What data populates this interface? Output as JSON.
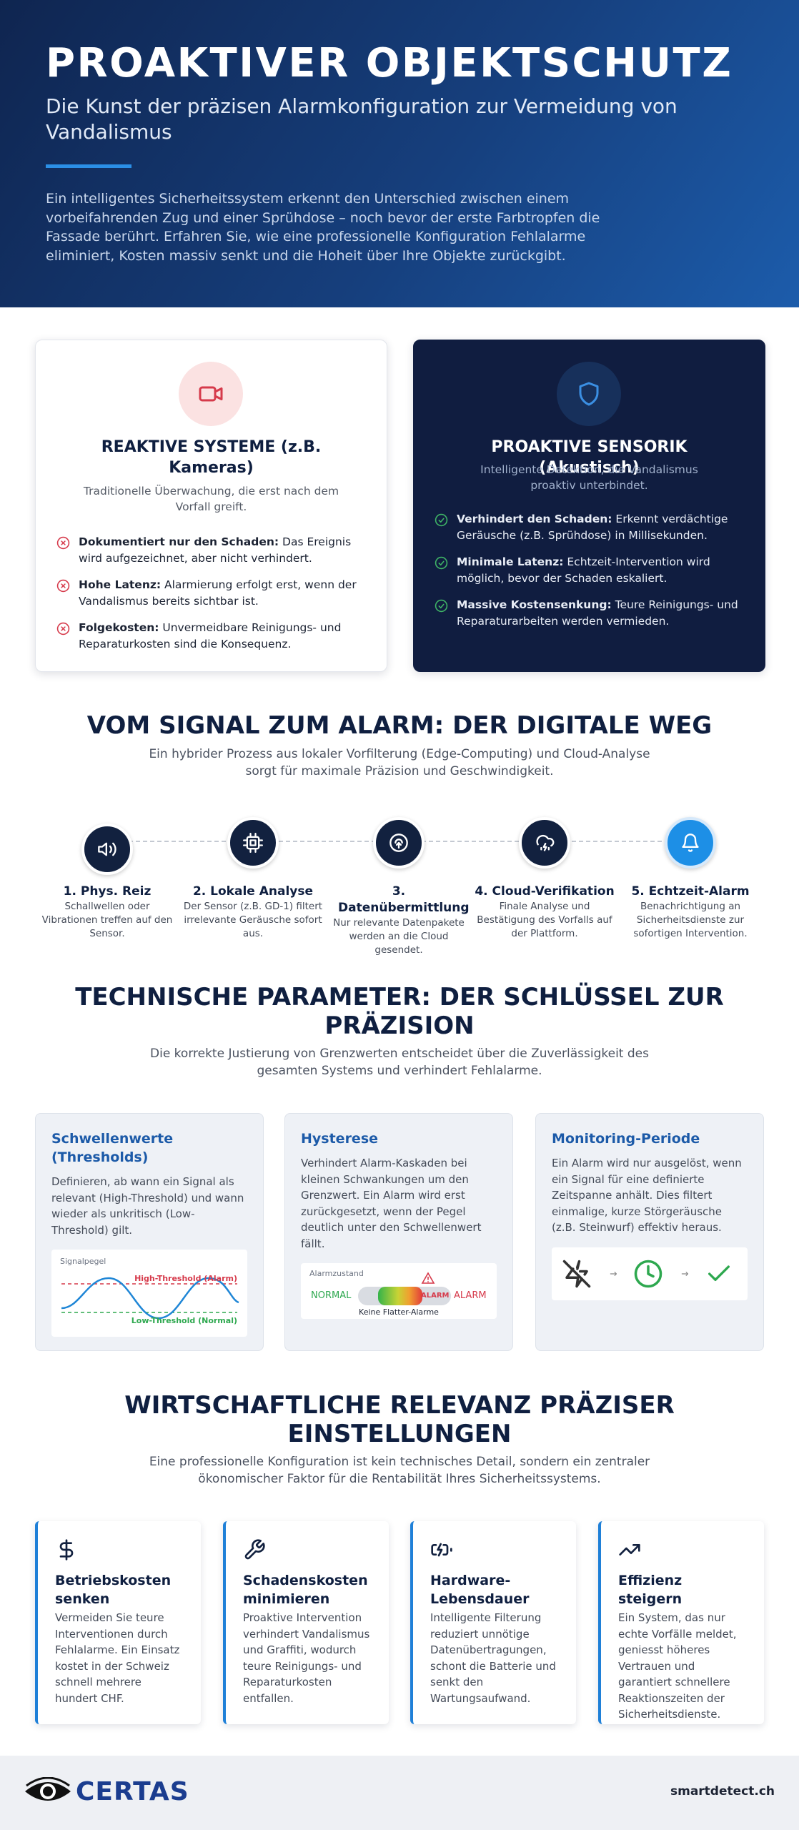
{
  "header": {
    "title": "PROAKTIVER OBJEKTSCHUTZ",
    "subtitle": "Die Kunst der präzisen Alarmkonfiguration zur Vermeidung von Vandalismus",
    "intro": "Ein intelligentes Sicherheitssystem erkennt den Unterschied zwischen einem vorbeifahrenden Zug und einer Sprühdose – noch bevor der erste Farbtropfen die Fassade berührt. Erfahren Sie, wie eine professionelle Konfiguration Fehlalarme eliminiert, Kosten massiv senkt und die Hoheit über Ihre Objekte zurückgibt."
  },
  "comparison": [
    {
      "title": "REAKTIVE SYSTEME (z.B. Kameras)",
      "subtitle": "Traditionelle Überwachung, die erst nach dem Vorfall greift.",
      "items": [
        {
          "bold": "Dokumentiert nur den Schaden:",
          "text": "Das Ereignis wird aufgezeichnet, aber nicht verhindert."
        },
        {
          "bold": "Hohe Latenz:",
          "text": "Alarmierung erfolgt erst, wenn der Vandalismus bereits sichtbar ist."
        },
        {
          "bold": "Folgekosten:",
          "text": "Unvermeidbare Reinigungs- und Reparaturkosten sind die Konsequenz."
        }
      ]
    },
    {
      "title": "PROAKTIVE SENSORIK (Akustisch)",
      "subtitle": "Intelligente Detektion, die Vandalismus proaktiv unterbindet.",
      "items": [
        {
          "bold": "Verhindert den Schaden:",
          "text": "Erkennt verdächtige Geräusche (z.B. Sprühdose) in Millisekunden."
        },
        {
          "bold": "Minimale Latenz:",
          "text": "Echtzeit-Intervention wird möglich, bevor der Schaden eskaliert."
        },
        {
          "bold": "Massive Kostensenkung:",
          "text": "Teure Reinigungs- und Reparaturarbeiten werden vermieden."
        }
      ]
    }
  ],
  "process": {
    "title": "VOM SIGNAL ZUM ALARM: DER DIGITALE WEG",
    "subtitle": "Ein hybrider Prozess aus lokaler Vorfilterung (Edge-Computing) und Cloud-Analyse sorgt für maximale Präzision und Geschwindigkeit.",
    "steps": [
      {
        "title": "1. Phys. Reiz",
        "text": "Schallwellen oder Vibrationen treffen auf den Sensor."
      },
      {
        "title": "2. Lokale Analyse",
        "text": "Der Sensor (z.B. GD-1) filtert irrelevante Geräusche sofort aus."
      },
      {
        "title": "3. Datenübermittlung",
        "text": "Nur relevante Datenpakete werden an die Cloud gesendet."
      },
      {
        "title": "4. Cloud-Verifikation",
        "text": "Finale Analyse und Bestätigung des Vorfalls auf der Plattform."
      },
      {
        "title": "5. Echtzeit-Alarm",
        "text": "Benachrichtigung an Sicherheitsdienste zur sofortigen Intervention."
      }
    ]
  },
  "parameters": {
    "title": "TECHNISCHE PARAMETER: DER SCHLÜSSEL ZUR PRÄZISION",
    "subtitle": "Die korrekte Justierung von Grenzwerten entscheidet über die Zuverlässigkeit des gesamten Systems und verhindert Fehlalarme.",
    "cards": [
      {
        "title": "Schwellenwerte (Thresholds)",
        "text": "Definieren, ab wann ein Signal als relevant (High-Threshold) und wann wieder als unkritisch (Low-Threshold) gilt."
      },
      {
        "title": "Hysterese",
        "text": "Verhindert Alarm-Kaskaden bei kleinen Schwankungen um den Grenzwert. Ein Alarm wird erst zurückgesetzt, wenn der Pegel deutlich unter den Schwellenwert fällt."
      },
      {
        "title": "Monitoring-Periode",
        "text": "Ein Alarm wird nur ausgelöst, wenn ein Signal für eine definierte Zeitspanne anhält. Dies filtert einmalige, kurze Störgeräusche (z.B. Steinwurf) effektiv heraus."
      }
    ],
    "threshold_diagram": {
      "label": "Signalpegel",
      "high": "High-Threshold (Alarm)",
      "low": "Low-Threshold (Normal)"
    },
    "hysteresis_diagram": {
      "label": "Alarmzustand",
      "normal": "NORMAL",
      "pill_alarm": "ALARM",
      "alarm": "ALARM",
      "caption": "Keine Flatter-Alarme"
    }
  },
  "economics": {
    "title": "WIRTSCHAFTLICHE RELEVANZ PRÄZISER EINSTELLUNGEN",
    "subtitle": "Eine professionelle Konfiguration ist kein technisches Detail, sondern ein zentraler ökonomischer Faktor für die Rentabilität Ihres Sicherheitssystems.",
    "cards": [
      {
        "title": "Betriebskosten senken",
        "text": "Vermeiden Sie teure Interventionen durch Fehlalarme. Ein Einsatz kostet in der Schweiz schnell mehrere hundert CHF."
      },
      {
        "title": "Schadenskosten minimieren",
        "text": "Proaktive Intervention verhindert Vandalismus und Graffiti, wodurch teure Reinigungs- und Reparaturkosten entfallen."
      },
      {
        "title": "Hardware-Lebensdauer",
        "text": "Intelligente Filterung reduziert unnötige Datenübertragungen, schont die Batterie und senkt den Wartungsaufwand."
      },
      {
        "title": "Effizienz steigern",
        "text": "Ein System, das nur echte Vorfälle meldet, geniesst höheres Vertrauen und garantiert schnellere Reaktionszeiten der Sicherheitsdienste."
      }
    ]
  },
  "footer": {
    "logo": "CERTAS",
    "url": "smartdetect.ch"
  }
}
